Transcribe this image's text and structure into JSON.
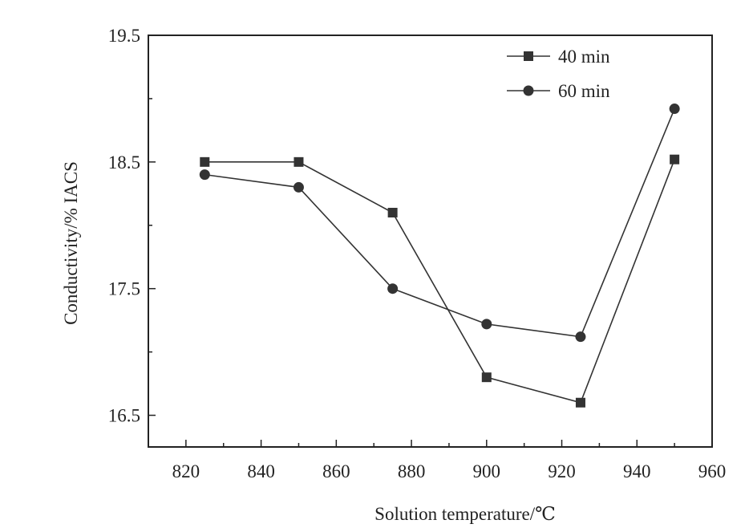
{
  "chart_data": {
    "type": "line",
    "title": "",
    "xlabel": "Solution temperature/℃",
    "ylabel": "Conductivity/% IACS",
    "xlim": [
      810,
      960
    ],
    "ylim": [
      16.25,
      19.5
    ],
    "x_ticks": [
      820,
      840,
      860,
      880,
      900,
      920,
      940,
      960
    ],
    "y_ticks": [
      16.5,
      17.5,
      18.5,
      19.5
    ],
    "y_tick_labels": [
      "16.5",
      "17.5",
      "18.5",
      "19.5"
    ],
    "legend_position": "top-right",
    "grid": false,
    "x": [
      825,
      850,
      875,
      900,
      925,
      950
    ],
    "series": [
      {
        "name": "40 min",
        "marker": "square",
        "values": [
          18.5,
          18.5,
          18.1,
          16.8,
          16.6,
          18.52
        ]
      },
      {
        "name": "60 min",
        "marker": "circle",
        "values": [
          18.4,
          18.3,
          17.5,
          17.22,
          17.12,
          18.92
        ]
      }
    ]
  }
}
